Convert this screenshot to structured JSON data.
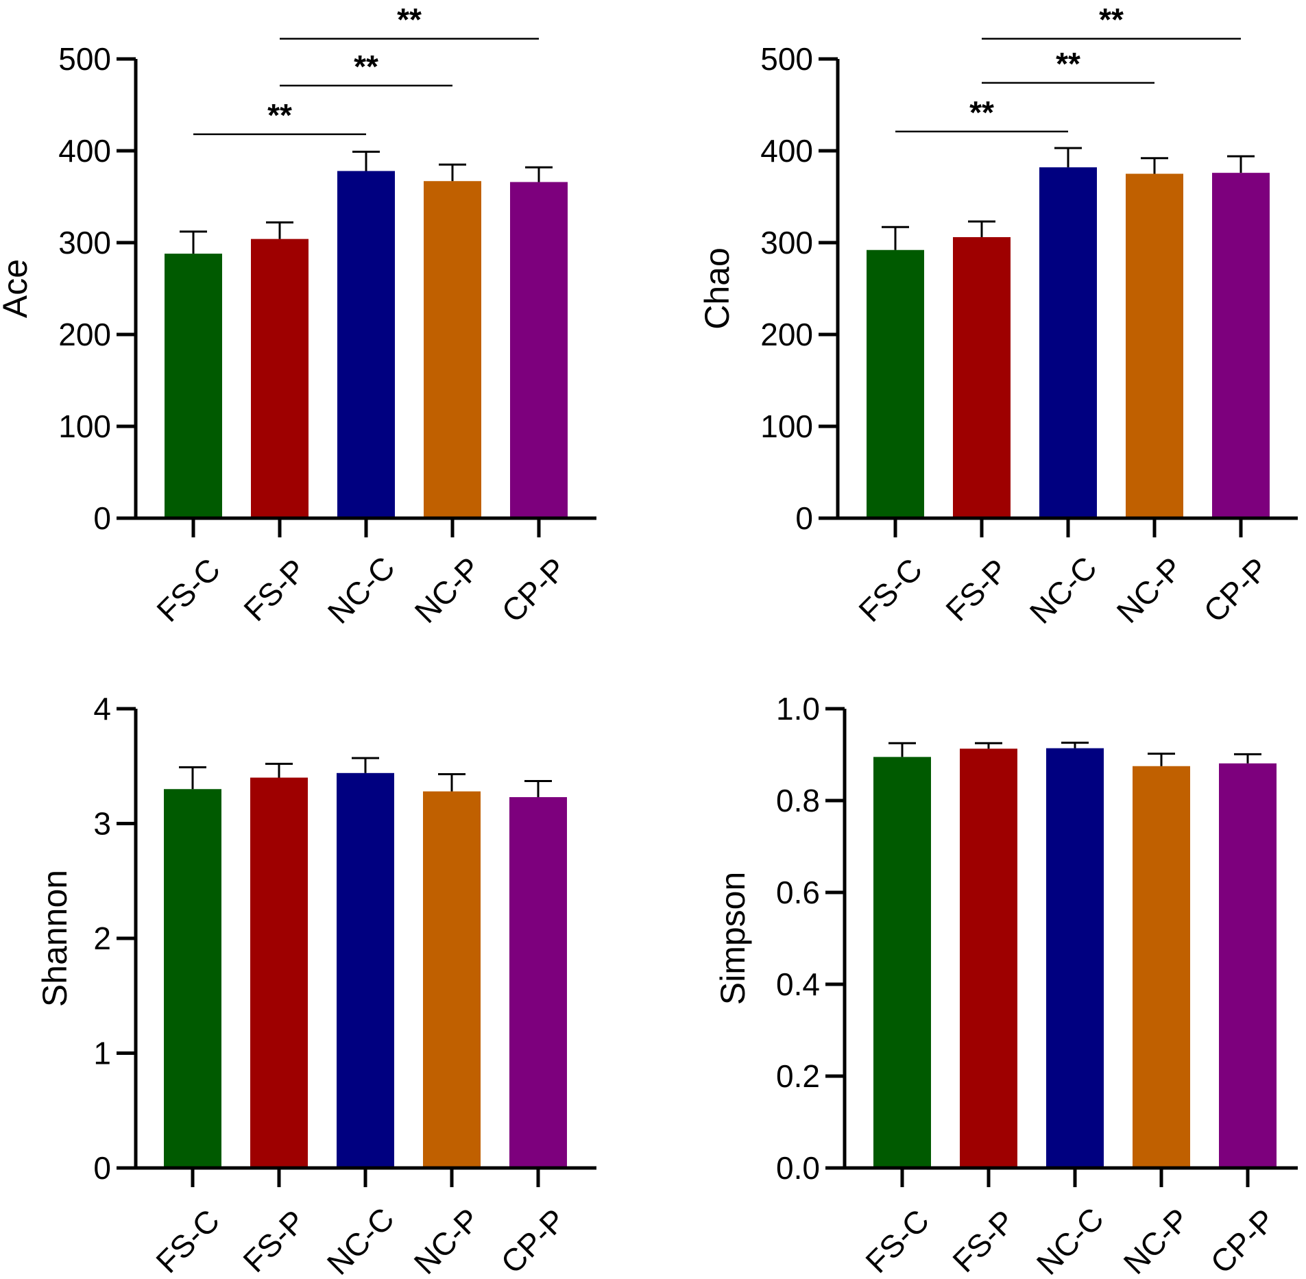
{
  "colors": {
    "FS-C": "#005a00",
    "FS-P": "#9e0000",
    "NC-C": "#000080",
    "NC-P": "#c06000",
    "CP-P": "#7d007d"
  },
  "chart_data": [
    {
      "id": "ace",
      "type": "bar",
      "title": "",
      "xlabel": "",
      "ylabel": "Ace",
      "ylim": [
        0,
        500
      ],
      "yticks": [
        0,
        100,
        200,
        300,
        400,
        500
      ],
      "ytick_labels": [
        "0",
        "100",
        "200",
        "300",
        "400",
        "500"
      ],
      "categories": [
        "FS-C",
        "FS-P",
        "NC-C",
        "NC-P",
        "CP-P"
      ],
      "values": [
        288,
        304,
        378,
        367,
        366
      ],
      "errors": [
        24,
        18,
        21,
        18,
        16
      ],
      "significance": [
        {
          "from": 0,
          "to": 2,
          "label": "**",
          "y": 418
        },
        {
          "from": 1,
          "to": 3,
          "label": "**",
          "y": 471
        },
        {
          "from": 1,
          "to": 4,
          "label": "**",
          "y": 522
        }
      ]
    },
    {
      "id": "chao",
      "type": "bar",
      "title": "",
      "xlabel": "",
      "ylabel": "Chao",
      "ylim": [
        0,
        500
      ],
      "yticks": [
        0,
        100,
        200,
        300,
        400,
        500
      ],
      "ytick_labels": [
        "0",
        "100",
        "200",
        "300",
        "400",
        "500"
      ],
      "categories": [
        "FS-C",
        "FS-P",
        "NC-C",
        "NC-P",
        "CP-P"
      ],
      "values": [
        292,
        306,
        382,
        375,
        376
      ],
      "errors": [
        25,
        17,
        21,
        17,
        18
      ],
      "significance": [
        {
          "from": 0,
          "to": 2,
          "label": "**",
          "y": 421
        },
        {
          "from": 1,
          "to": 3,
          "label": "**",
          "y": 474
        },
        {
          "from": 1,
          "to": 4,
          "label": "**",
          "y": 522
        }
      ]
    },
    {
      "id": "shannon",
      "type": "bar",
      "title": "",
      "xlabel": "",
      "ylabel": "Shannon",
      "ylim": [
        0,
        4
      ],
      "yticks": [
        0,
        1,
        2,
        3,
        4
      ],
      "ytick_labels": [
        "0",
        "1",
        "2",
        "3",
        "4"
      ],
      "categories": [
        "FS-C",
        "FS-P",
        "NC-C",
        "NC-P",
        "CP-P"
      ],
      "values": [
        3.3,
        3.4,
        3.44,
        3.28,
        3.23
      ],
      "errors": [
        0.19,
        0.12,
        0.13,
        0.15,
        0.14
      ],
      "significance": []
    },
    {
      "id": "simpson",
      "type": "bar",
      "title": "",
      "xlabel": "",
      "ylabel": "Simpson",
      "ylim": [
        0,
        1.0
      ],
      "yticks": [
        0,
        0.2,
        0.4,
        0.6,
        0.8,
        1.0
      ],
      "ytick_labels": [
        "0.0",
        "0.2",
        "0.4",
        "0.6",
        "0.8",
        "1.0"
      ],
      "categories": [
        "FS-C",
        "FS-P",
        "NC-C",
        "NC-P",
        "CP-P"
      ],
      "values": [
        0.895,
        0.913,
        0.914,
        0.875,
        0.881
      ],
      "errors": [
        0.03,
        0.012,
        0.012,
        0.027,
        0.02
      ],
      "significance": []
    }
  ]
}
